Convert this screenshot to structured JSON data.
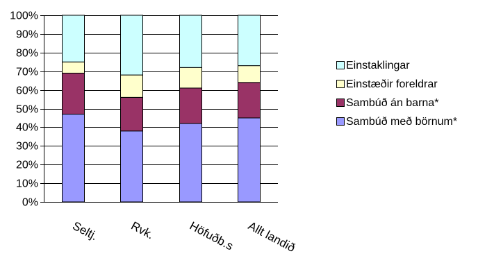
{
  "chart_data": {
    "type": "bar",
    "stacked": true,
    "normalized": true,
    "categories": [
      "Seltj.",
      "Rvk.",
      "Höfuðb.s",
      "Allt landið"
    ],
    "series": [
      {
        "name": "Sambúð með börnum*",
        "color": "#9999ff",
        "values": [
          47,
          38,
          42,
          45
        ]
      },
      {
        "name": "Sambúð án barna*",
        "color": "#993366",
        "values": [
          22,
          18,
          19,
          19
        ]
      },
      {
        "name": "Einstæðir foreldrar",
        "color": "#ffffcc",
        "values": [
          6,
          12,
          11,
          9
        ]
      },
      {
        "name": "Einstaklingar",
        "color": "#ccffff",
        "values": [
          25,
          32,
          28,
          27
        ]
      }
    ],
    "legend_order": [
      "Einstaklingar",
      "Einstæðir foreldrar",
      "Sambúð án barna*",
      "Sambúð með börnum*"
    ],
    "ylim": [
      0,
      100
    ],
    "yticks": [
      "0%",
      "10%",
      "20%",
      "30%",
      "40%",
      "50%",
      "60%",
      "70%",
      "80%",
      "90%",
      "100%"
    ],
    "grid": true,
    "legend_position": "right",
    "plot_background": "#ffffff",
    "grid_color": "#000000"
  }
}
